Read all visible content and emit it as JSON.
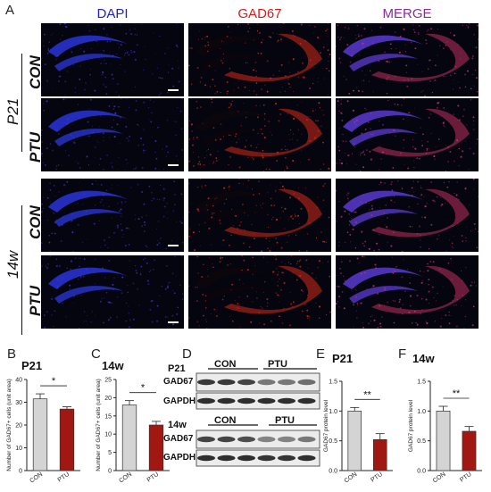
{
  "panel_labels": {
    "a": "A",
    "b": "B",
    "c": "C",
    "d": "D",
    "e": "E",
    "f": "F"
  },
  "columns": [
    {
      "label": "DAPI",
      "color": "#2222cc"
    },
    {
      "label": "GAD67",
      "color": "#d81b1b"
    },
    {
      "label": "MERGE",
      "color": "#8a2c9a"
    }
  ],
  "rows": [
    "CON",
    "PTU",
    "CON",
    "PTU"
  ],
  "groups": [
    "P21",
    "14w"
  ],
  "western": {
    "p21_title": "P21",
    "w14_title": "14w",
    "con_label": "CON",
    "ptu_label": "PTU",
    "protein": "GAD67",
    "loading": "GAPDH"
  },
  "chart_data": [
    {
      "type": "bar",
      "panel": "B",
      "title": "P21",
      "categories": [
        "CON",
        "PTU"
      ],
      "values": [
        31.5,
        27
      ],
      "errors": [
        2.2,
        1.0
      ],
      "colors": [
        "#d4d4d4",
        "#a11712"
      ],
      "ylabel": "Number of GAD67+ cells (unit area)",
      "ylim": [
        0,
        40
      ],
      "yticks": [
        "0",
        "10",
        "20",
        "30",
        "40"
      ],
      "significance": "*"
    },
    {
      "type": "bar",
      "panel": "C",
      "title": "14w",
      "categories": [
        "CON",
        "PTU"
      ],
      "values": [
        18,
        12.5
      ],
      "errors": [
        1.2,
        1.0
      ],
      "colors": [
        "#d4d4d4",
        "#a11712"
      ],
      "ylabel": "Number of GAD67+ cells (unit area)",
      "ylim": [
        0,
        25
      ],
      "yticks": [
        "0",
        "5",
        "10",
        "15",
        "20",
        "25"
      ],
      "significance": "*"
    },
    {
      "type": "bar",
      "panel": "E",
      "title": "P21",
      "categories": [
        "CON",
        "PTU"
      ],
      "values": [
        1.0,
        0.52
      ],
      "errors": [
        0.06,
        0.1
      ],
      "colors": [
        "#d4d4d4",
        "#a11712"
      ],
      "ylabel": "GAD67 protein level",
      "ylim": [
        0,
        1.5
      ],
      "yticks": [
        "0.0",
        "0.5",
        "1.0",
        "1.5"
      ],
      "significance": "**"
    },
    {
      "type": "bar",
      "panel": "F",
      "title": "14w",
      "categories": [
        "CON",
        "PTU"
      ],
      "values": [
        1.0,
        0.66
      ],
      "errors": [
        0.08,
        0.08
      ],
      "colors": [
        "#d4d4d4",
        "#a11712"
      ],
      "ylabel": "GAD67 protein level",
      "ylim": [
        0,
        1.5
      ],
      "yticks": [
        "0.0",
        "0.5",
        "1.0",
        "1.5"
      ],
      "significance": "**"
    }
  ]
}
